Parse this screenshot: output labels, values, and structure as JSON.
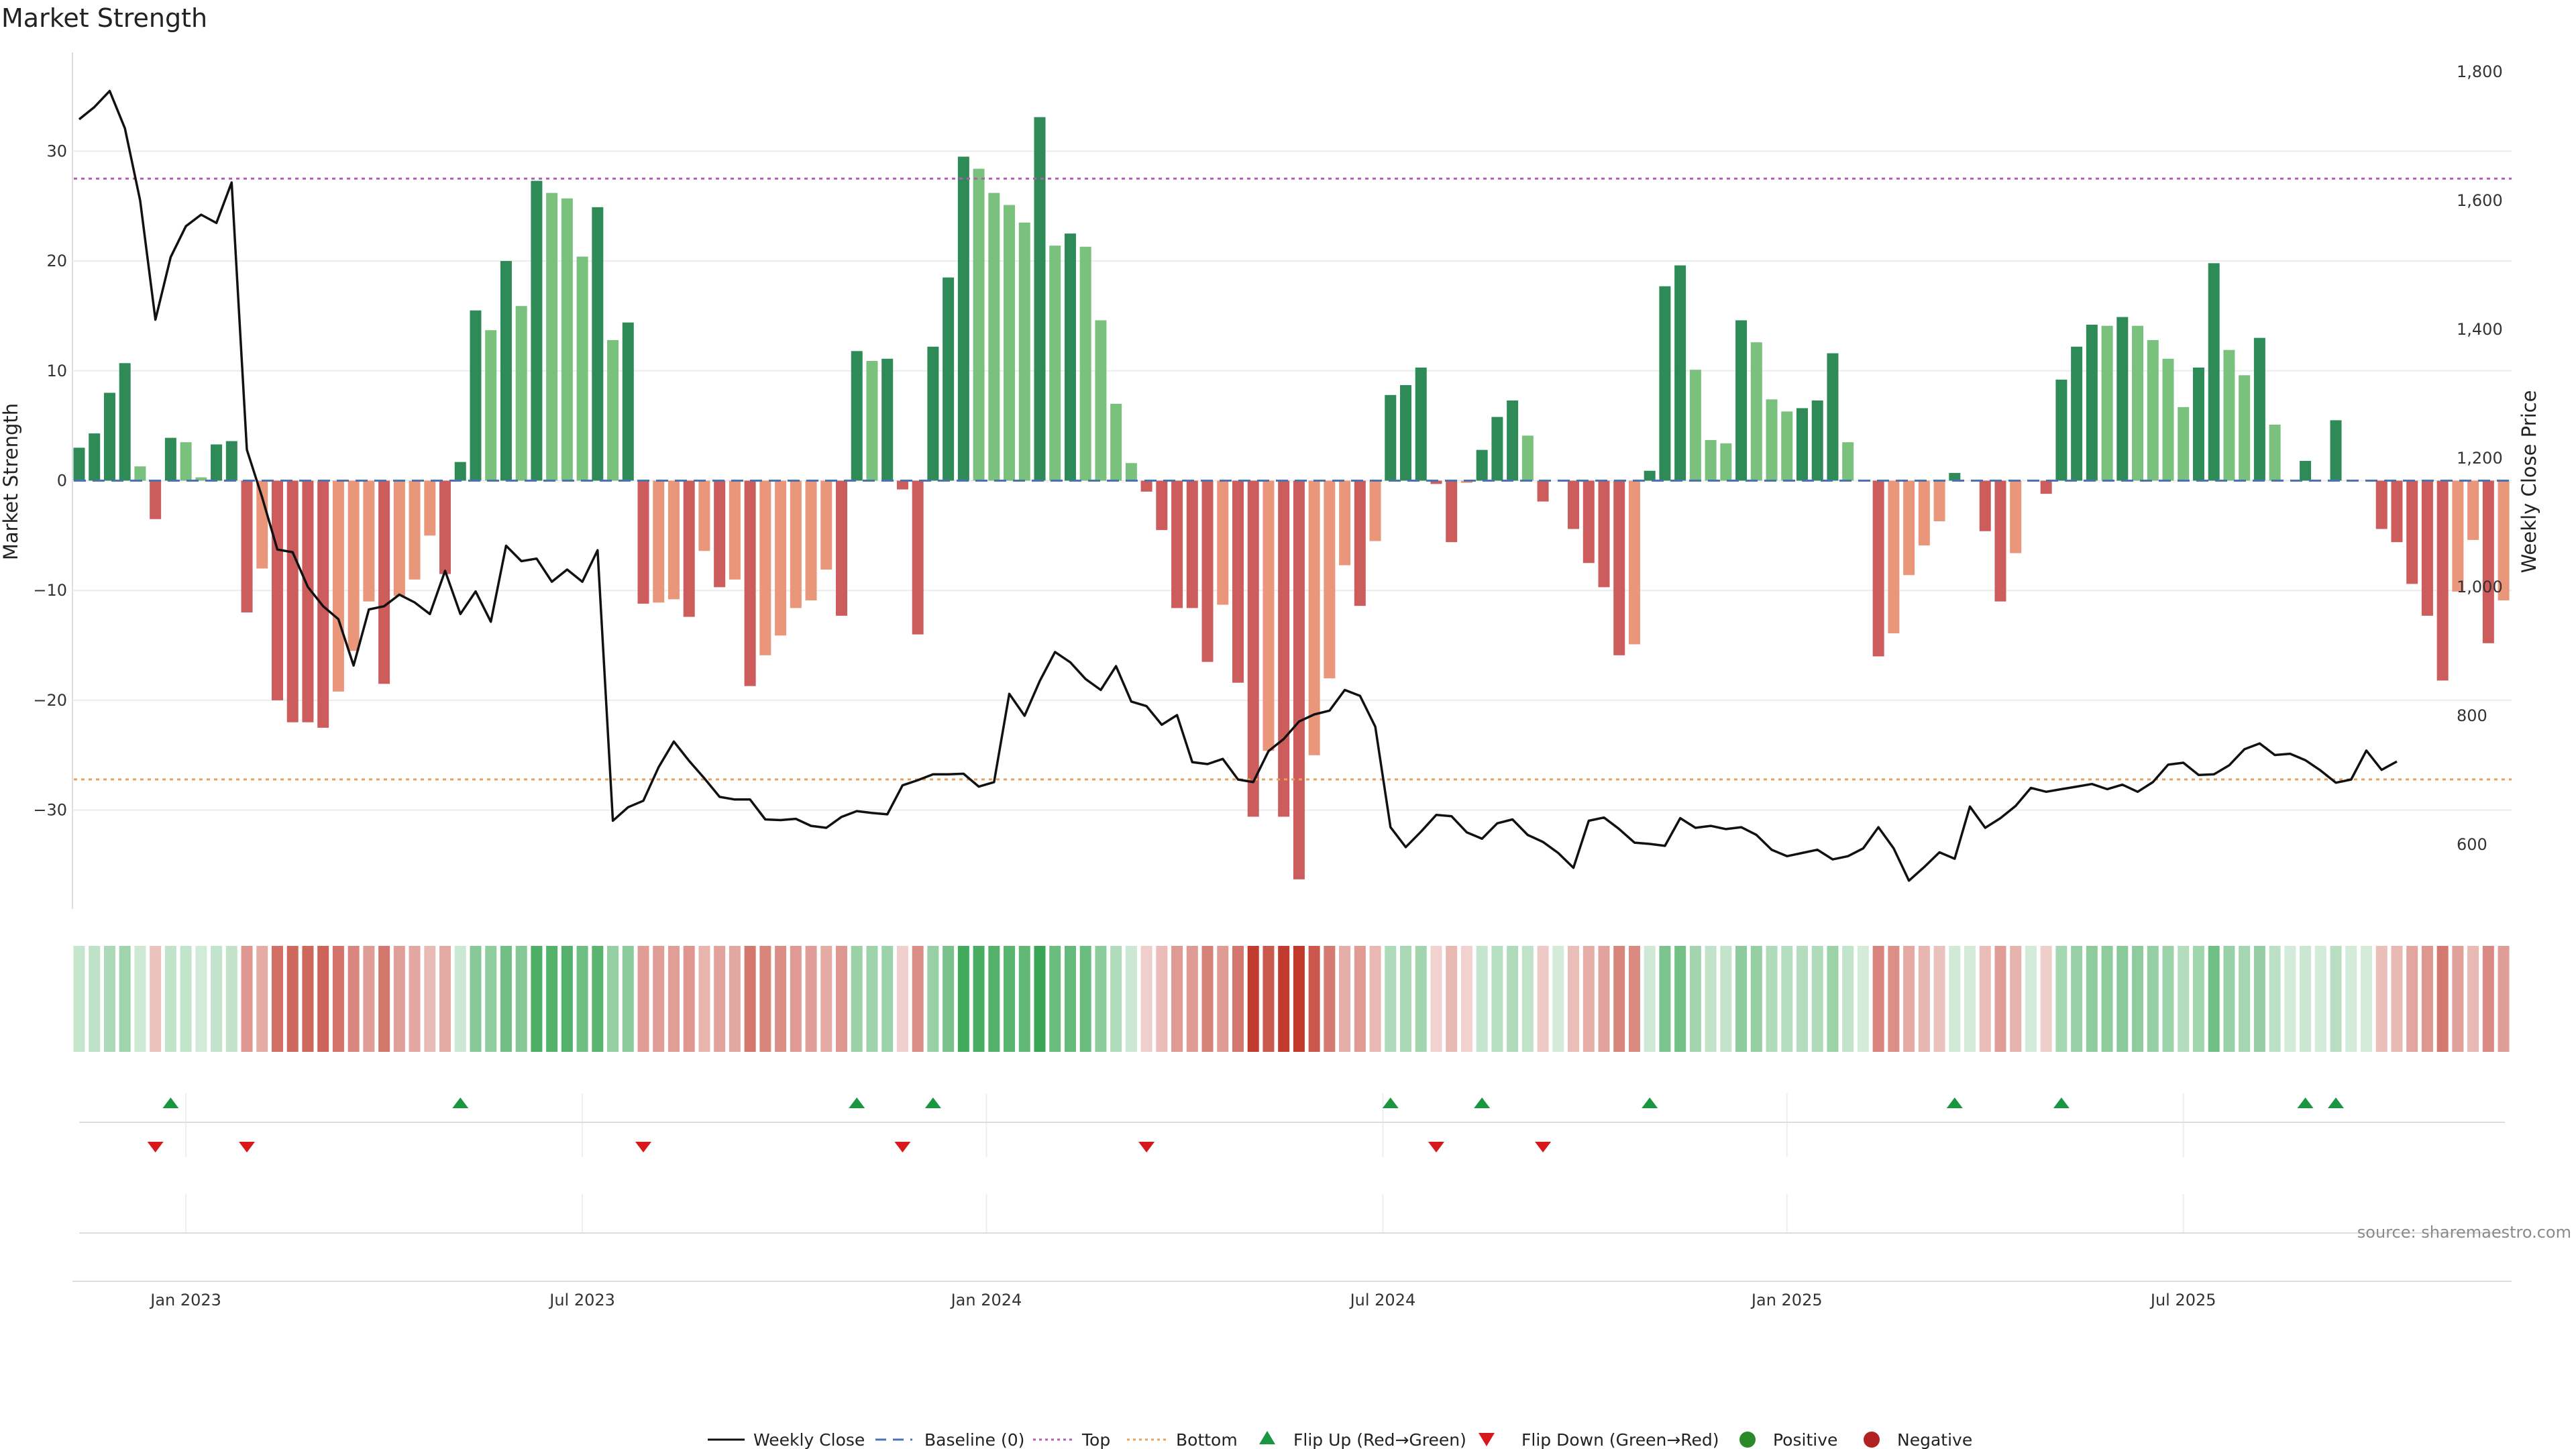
{
  "chart_data": {
    "type": "bar",
    "title": "Market Strength",
    "ylabel": "Market Strength",
    "y2label": "Weekly Close Price",
    "ylim": [
      -39,
      39
    ],
    "y2lim": [
      500,
      1830
    ],
    "yticks": [
      30,
      20,
      10,
      0,
      -10,
      -20,
      -30
    ],
    "yticks_labels": [
      "30",
      "20",
      "10",
      "0",
      "−10",
      "−20",
      "−30"
    ],
    "y2ticks": [
      1800,
      1600,
      1400,
      1200,
      1000,
      800,
      600
    ],
    "y2ticks_labels": [
      "1,800",
      "1,600",
      "1,400",
      "1,200",
      "1,000",
      "800",
      "600"
    ],
    "xlabels": [
      {
        "week": 7,
        "label": "Jan 2023"
      },
      {
        "week": 33,
        "label": "Jul 2023"
      },
      {
        "week": 59.5,
        "label": "Jan 2024"
      },
      {
        "week": 85.5,
        "label": "Jul 2024"
      },
      {
        "week": 112,
        "label": "Jan 2025"
      },
      {
        "week": 138,
        "label": "Jul 2025"
      }
    ],
    "top_threshold": 27.5,
    "bottom_threshold": -27.2,
    "strength": [
      3,
      4.3,
      8,
      10.7,
      1.3,
      -3.5,
      3.9,
      3.5,
      0.3,
      3.3,
      3.6,
      -12,
      -8,
      -20,
      -22,
      -22,
      -22.5,
      -19.2,
      -15.5,
      -11,
      -18.5,
      -10.5,
      -9,
      -5,
      -8.5,
      1.7,
      15.5,
      13.7,
      20,
      15.9,
      27.3,
      26.2,
      25.7,
      20.4,
      24.9,
      12.8,
      14.4,
      -11.2,
      -11.1,
      -10.8,
      -12.4,
      -6.4,
      -9.7,
      -9,
      -18.7,
      -15.9,
      -14.1,
      -11.6,
      -10.9,
      -8.1,
      -12.3,
      11.8,
      10.9,
      11.1,
      -0.8,
      -14,
      12.2,
      18.5,
      29.5,
      28.4,
      26.2,
      25.1,
      23.5,
      33.1,
      21.4,
      22.5,
      21.3,
      14.6,
      7,
      1.6,
      -1,
      -4.5,
      -11.6,
      -11.6,
      -16.5,
      -11.3,
      -18.4,
      -30.6,
      -24.6,
      -30.6,
      -36.3,
      -25,
      -18,
      -7.7,
      -11.4,
      -5.5,
      7.8,
      8.7,
      10.3,
      -0.3,
      -5.6,
      -0.2,
      2.8,
      5.8,
      7.3,
      4.1,
      -1.9,
      0,
      -4.4,
      -7.5,
      -9.7,
      -15.9,
      -14.9,
      0.9,
      17.7,
      19.6,
      10.1,
      3.7,
      3.4,
      14.6,
      12.6,
      7.4,
      6.3,
      6.6,
      7.3,
      11.6,
      3.5,
      0,
      -16,
      -13.9,
      -8.6,
      -5.9,
      -3.7,
      0.7,
      0,
      -4.6,
      -11,
      -6.6,
      0,
      -1.2,
      9.2,
      12.2,
      14.2,
      14.1,
      14.9,
      14.1,
      12.8,
      11.1,
      6.7,
      10.3,
      19.8,
      11.9,
      9.6,
      13,
      5.1,
      0,
      1.8,
      0,
      5.5,
      0,
      0,
      -4.4,
      -5.6,
      -9.4,
      -12.3,
      -18.2,
      -10.1,
      -5.4,
      -14.8,
      -10.9
    ],
    "price": [
      1726,
      1745,
      1770,
      1712,
      1600,
      1415,
      1512,
      1560,
      1578,
      1565,
      1628,
      1213,
      1139,
      1058,
      1054,
      1000,
      970,
      950,
      878,
      965,
      970,
      988,
      976,
      958,
      1025,
      958,
      993,
      946,
      1064,
      1040,
      1044,
      1008,
      1027,
      1008,
      1057,
      637,
      658,
      668,
      720,
      760,
      730,
      703,
      674,
      670,
      670,
      639,
      638,
      640,
      629,
      626,
      643,
      652,
      649,
      647,
      692,
      700,
      709,
      709,
      710,
      690,
      697,
      834,
      800,
      854,
      899,
      883,
      857,
      840,
      877,
      822,
      815,
      786,
      801,
      728,
      725,
      733,
      701,
      697,
      745,
      764,
      791,
      802,
      808,
      840,
      831,
      783,
      627,
      596,
      620,
      646,
      644,
      619,
      609,
      633,
      639,
      615,
      604,
      587,
      564,
      637,
      642,
      624,
      603,
      601,
      598,
      641,
      626,
      629,
      624,
      627,
      615,
      592,
      582,
      587,
      592,
      577,
      582,
      594,
      627,
      594,
      544,
      565,
      588,
      578,
      659,
      626,
      641,
      660,
      688,
      682,
      686,
      690,
      694,
      686,
      693,
      682,
      697,
      724,
      727,
      708,
      709,
      723,
      748,
      757,
      739,
      741,
      731,
      715,
      696,
      701,
      746,
      716,
      729
    ]
  },
  "legend": {
    "items": [
      {
        "label": "Weekly Close",
        "color": "#111111"
      },
      {
        "label": "Baseline (0)",
        "color": "#4a72b0"
      },
      {
        "label": "Top",
        "color": "#b45db4"
      },
      {
        "label": "Bottom",
        "color": "#e8a060"
      },
      {
        "label": "Flip Up (Red→Green)",
        "color": "#1a9641"
      },
      {
        "label": "Flip Down (Green→Red)",
        "color": "#d7191c"
      },
      {
        "label": "Positive",
        "color": "#2a8a2a"
      },
      {
        "label": "Negative",
        "color": "#b22222"
      }
    ]
  },
  "source": "source: sharemaestro.com",
  "colors": {
    "strong_pos": "#2e8b57",
    "weak_pos": "#7bc17e",
    "strong_neg": "#cd5c5c",
    "weak_neg": "#e9967a",
    "flip_up": "#1a9641",
    "flip_down": "#d7191c"
  }
}
